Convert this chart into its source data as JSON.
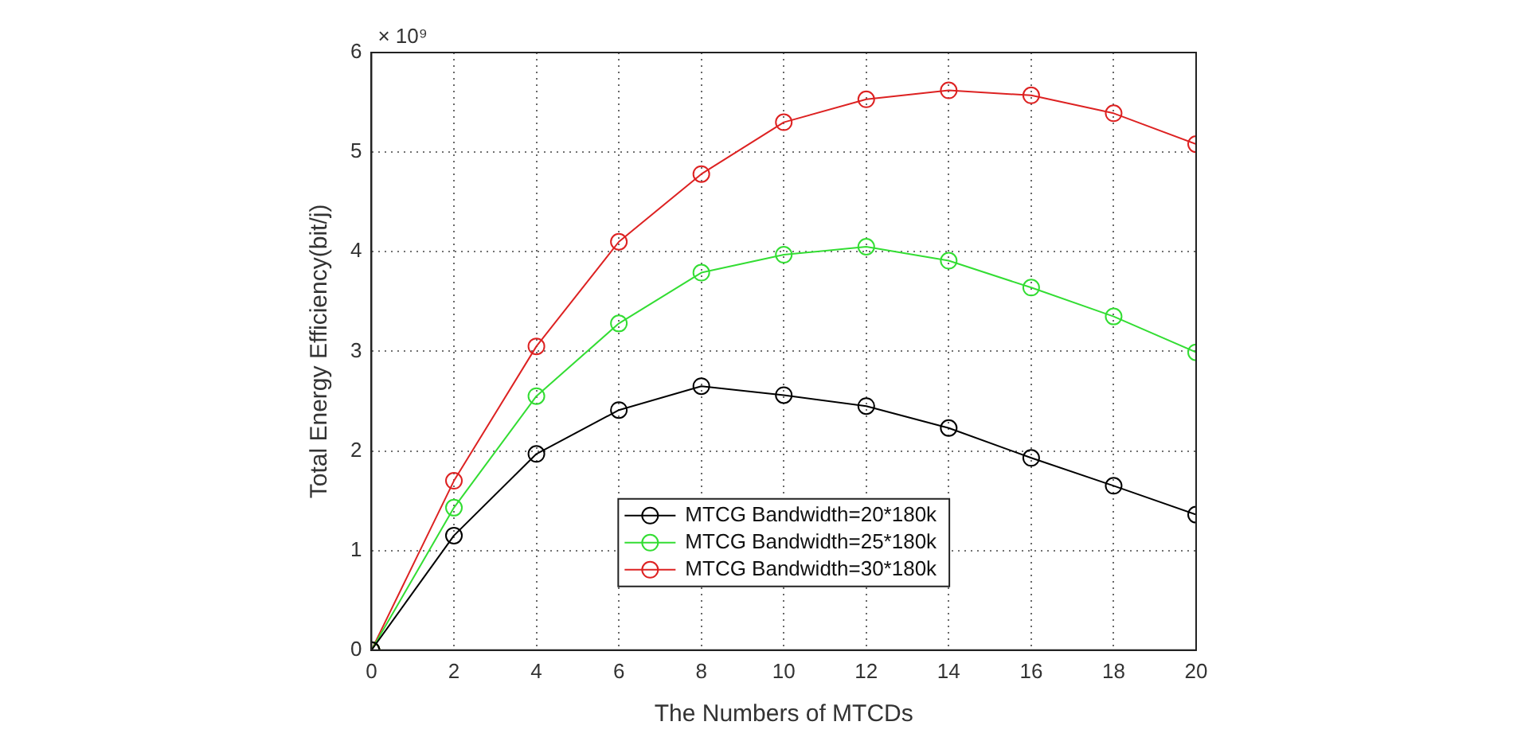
{
  "chart_data": {
    "type": "line",
    "xlabel": "The Numbers of MTCDs",
    "ylabel": "Total Energy Efficiency(bit/j)",
    "annotations": [
      "× 10⁹"
    ],
    "x": [
      0,
      2,
      4,
      6,
      8,
      10,
      12,
      14,
      16,
      18,
      20
    ],
    "series": [
      {
        "name": "MTCG Bandwidth=20*180k",
        "color": "#000000",
        "values": [
          0,
          1.15,
          1.97,
          2.41,
          2.65,
          2.56,
          2.45,
          2.23,
          1.93,
          1.65,
          1.36
        ]
      },
      {
        "name": "MTCG Bandwidth=25*180k",
        "color": "#33dd33",
        "values": [
          0,
          1.43,
          2.55,
          3.28,
          3.79,
          3.97,
          4.05,
          3.91,
          3.64,
          3.35,
          2.99
        ]
      },
      {
        "name": "MTCG Bandwidth=30*180k",
        "color": "#dd2222",
        "values": [
          0,
          1.7,
          3.05,
          4.1,
          4.78,
          5.3,
          5.53,
          5.62,
          5.57,
          5.39,
          5.08
        ]
      }
    ],
    "xlim": [
      0,
      20
    ],
    "xticks": [
      0,
      2,
      4,
      6,
      8,
      10,
      12,
      14,
      16,
      18,
      20
    ],
    "ylim": [
      0,
      6
    ],
    "yticks": [
      0,
      1,
      2,
      3,
      4,
      5,
      6
    ],
    "grid": true,
    "legend": "bottom",
    "marker": "circle",
    "line_style": "solid"
  }
}
